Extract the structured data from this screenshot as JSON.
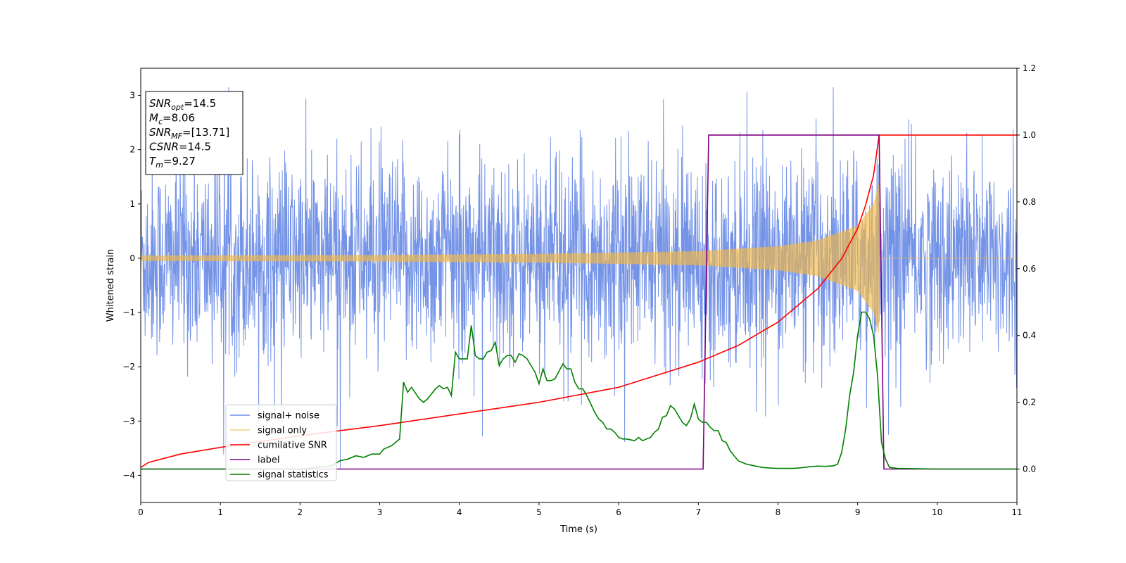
{
  "chart_data": {
    "type": "line",
    "title": "",
    "xlabel": "Time (s)",
    "ylabel": "Whitened strain",
    "xlim": [
      0,
      11
    ],
    "ylim": [
      -4.5,
      3.5
    ],
    "y2lim": [
      -0.1,
      1.2
    ],
    "x_ticks": [
      "0",
      "1",
      "2",
      "3",
      "4",
      "5",
      "6",
      "7",
      "8",
      "9",
      "10",
      "11"
    ],
    "y_ticks": [
      "−4",
      "−3",
      "−2",
      "−1",
      "0",
      "1",
      "2",
      "3"
    ],
    "y2_ticks": [
      "0.0",
      "0.2",
      "0.4",
      "0.6",
      "0.8",
      "1.0",
      "1.2"
    ],
    "grid": false,
    "legend_position": "lower-left",
    "annotation_box": {
      "lines": [
        {
          "main": "SNR",
          "sub": "opt",
          "value": "=14.5"
        },
        {
          "main": "M",
          "sub": "c",
          "value": "=8.06"
        },
        {
          "main": "SNR",
          "sub": "MF",
          "value": "=[13.71]"
        },
        {
          "main": "CSNR",
          "sub": "",
          "value": "=14.5"
        },
        {
          "main": "T",
          "sub": "m",
          "value": "=9.27"
        }
      ]
    },
    "series": [
      {
        "name": "signal+ noise",
        "axis": "left",
        "color": "#6d8de6",
        "kind": "noise",
        "amplitude_range": [
          -4.15,
          3.15
        ]
      },
      {
        "name": "signal only",
        "axis": "left",
        "color": "#f5b942",
        "kind": "chirp",
        "envelope": {
          "t": [
            0,
            3,
            5,
            7,
            8,
            8.5,
            9,
            9.2,
            9.27
          ],
          "amp": [
            0.05,
            0.06,
            0.08,
            0.13,
            0.22,
            0.33,
            0.6,
            1.0,
            1.4
          ]
        },
        "merger_time": 9.27
      },
      {
        "name": "cumilative SNR",
        "axis": "right",
        "color": "#ff0000",
        "x": [
          0,
          0.1,
          0.5,
          1,
          2,
          3,
          4,
          5,
          6,
          7,
          7.5,
          8,
          8.5,
          8.8,
          9.0,
          9.1,
          9.2,
          9.27,
          11
        ],
        "y": [
          0.005,
          0.02,
          0.045,
          0.065,
          0.1,
          0.13,
          0.165,
          0.2,
          0.245,
          0.32,
          0.37,
          0.44,
          0.54,
          0.63,
          0.72,
          0.79,
          0.88,
          1.0,
          1.0
        ]
      },
      {
        "name": "label",
        "axis": "right",
        "color": "#800080",
        "x": [
          0,
          7.06,
          7.13,
          9.27,
          9.33,
          11
        ],
        "y": [
          0,
          0,
          1,
          1,
          0,
          0
        ]
      },
      {
        "name": "signal statistics",
        "axis": "right",
        "color": "#008000",
        "x": [
          0,
          2.0,
          2.4,
          2.5,
          2.6,
          2.7,
          2.8,
          2.9,
          3.0,
          3.05,
          3.1,
          3.15,
          3.2,
          3.25,
          3.3,
          3.35,
          3.4,
          3.5,
          3.55,
          3.6,
          3.65,
          3.7,
          3.75,
          3.8,
          3.85,
          3.9,
          3.95,
          4.0,
          4.05,
          4.1,
          4.15,
          4.2,
          4.25,
          4.3,
          4.35,
          4.4,
          4.45,
          4.5,
          4.55,
          4.6,
          4.65,
          4.7,
          4.75,
          4.8,
          4.85,
          4.9,
          4.95,
          5.0,
          5.05,
          5.1,
          5.15,
          5.2,
          5.3,
          5.35,
          5.4,
          5.45,
          5.5,
          5.55,
          5.6,
          5.65,
          5.7,
          5.75,
          5.8,
          5.85,
          5.9,
          5.95,
          6.0,
          6.05,
          6.1,
          6.2,
          6.25,
          6.3,
          6.35,
          6.4,
          6.45,
          6.5,
          6.55,
          6.6,
          6.65,
          6.7,
          6.75,
          6.8,
          6.85,
          6.9,
          6.95,
          7.0,
          7.05,
          7.1,
          7.15,
          7.2,
          7.25,
          7.3,
          7.35,
          7.4,
          7.45,
          7.5,
          7.55,
          7.6,
          7.7,
          7.8,
          7.9,
          8.0,
          8.2,
          8.3,
          8.4,
          8.5,
          8.6,
          8.7,
          8.75,
          8.8,
          8.85,
          8.9,
          8.95,
          9.0,
          9.05,
          9.1,
          9.15,
          9.2,
          9.25,
          9.3,
          9.35,
          9.4,
          9.5,
          10,
          11
        ],
        "y": [
          0.0,
          0.0,
          0.01,
          0.025,
          0.03,
          0.04,
          0.035,
          0.045,
          0.045,
          0.06,
          0.065,
          0.07,
          0.08,
          0.09,
          0.26,
          0.23,
          0.245,
          0.21,
          0.2,
          0.21,
          0.225,
          0.24,
          0.25,
          0.24,
          0.245,
          0.22,
          0.35,
          0.33,
          0.33,
          0.33,
          0.43,
          0.34,
          0.33,
          0.33,
          0.35,
          0.355,
          0.38,
          0.31,
          0.33,
          0.34,
          0.34,
          0.32,
          0.345,
          0.34,
          0.33,
          0.31,
          0.29,
          0.255,
          0.3,
          0.265,
          0.265,
          0.27,
          0.315,
          0.3,
          0.3,
          0.26,
          0.24,
          0.24,
          0.22,
          0.195,
          0.17,
          0.15,
          0.14,
          0.12,
          0.12,
          0.11,
          0.095,
          0.09,
          0.09,
          0.085,
          0.095,
          0.085,
          0.09,
          0.095,
          0.11,
          0.12,
          0.155,
          0.16,
          0.19,
          0.18,
          0.16,
          0.14,
          0.13,
          0.15,
          0.195,
          0.15,
          0.14,
          0.14,
          0.125,
          0.115,
          0.115,
          0.085,
          0.08,
          0.055,
          0.04,
          0.025,
          0.02,
          0.015,
          0.01,
          0.005,
          0.003,
          0.002,
          0.002,
          0.004,
          0.007,
          0.009,
          0.008,
          0.01,
          0.015,
          0.05,
          0.12,
          0.22,
          0.29,
          0.4,
          0.47,
          0.47,
          0.45,
          0.4,
          0.28,
          0.08,
          0.03,
          0.005,
          0.002,
          0.0,
          0.0
        ]
      }
    ]
  }
}
